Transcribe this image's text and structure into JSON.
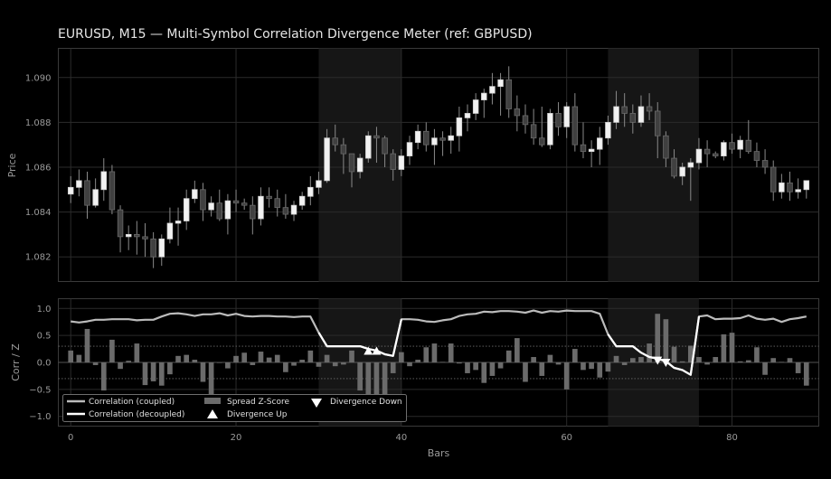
{
  "chart_data": [
    {
      "type": "candlestick",
      "title": "EURUSD, M15  —  Multi-Symbol Correlation Divergence Meter (ref: GBPUSD)",
      "ylabel": "Price",
      "xlim": [
        -1.5,
        90.5
      ],
      "ylim": [
        1.0809,
        1.0913
      ],
      "yticks": [
        1.082,
        1.084,
        1.086,
        1.088,
        1.09
      ],
      "ytick_labels": [
        "1.082",
        "1.084",
        "1.086",
        "1.088",
        "1.090"
      ],
      "grid": true,
      "shaded_x_ranges": [
        [
          30,
          40
        ],
        [
          65,
          76
        ]
      ],
      "candles": [
        [
          0,
          1.0848,
          1.0856,
          1.0844,
          1.0851
        ],
        [
          1,
          1.0851,
          1.0859,
          1.0847,
          1.0854
        ],
        [
          2,
          1.0854,
          1.0858,
          1.0837,
          1.0843
        ],
        [
          3,
          1.0843,
          1.0855,
          1.0842,
          1.085
        ],
        [
          4,
          1.085,
          1.0864,
          1.0845,
          1.0858
        ],
        [
          5,
          1.0858,
          1.0861,
          1.0839,
          1.0841
        ],
        [
          6,
          1.0841,
          1.0843,
          1.0822,
          1.0829
        ],
        [
          7,
          1.0829,
          1.0834,
          1.0823,
          1.083
        ],
        [
          8,
          1.083,
          1.0836,
          1.0821,
          1.0829
        ],
        [
          9,
          1.0829,
          1.0835,
          1.082,
          1.0828
        ],
        [
          10,
          1.0828,
          1.0831,
          1.0815,
          1.082
        ],
        [
          11,
          1.082,
          1.083,
          1.0816,
          1.0828
        ],
        [
          12,
          1.0828,
          1.0842,
          1.0826,
          1.0835
        ],
        [
          13,
          1.0835,
          1.0842,
          1.0825,
          1.0836
        ],
        [
          14,
          1.0836,
          1.085,
          1.0832,
          1.0846
        ],
        [
          15,
          1.0846,
          1.0854,
          1.0844,
          1.085
        ],
        [
          16,
          1.085,
          1.0853,
          1.0836,
          1.0841
        ],
        [
          17,
          1.0841,
          1.0847,
          1.0838,
          1.0844
        ],
        [
          18,
          1.0844,
          1.085,
          1.0836,
          1.0837
        ],
        [
          19,
          1.0837,
          1.0848,
          1.083,
          1.0845
        ],
        [
          20,
          1.0845,
          1.085,
          1.084,
          1.0844
        ],
        [
          21,
          1.0844,
          1.0846,
          1.0841,
          1.0843
        ],
        [
          22,
          1.0843,
          1.0847,
          1.083,
          1.0837
        ],
        [
          23,
          1.0837,
          1.0851,
          1.0834,
          1.0847
        ],
        [
          24,
          1.0847,
          1.0851,
          1.0842,
          1.0846
        ],
        [
          25,
          1.0846,
          1.085,
          1.0838,
          1.0842
        ],
        [
          26,
          1.0842,
          1.0848,
          1.0837,
          1.0839
        ],
        [
          27,
          1.0839,
          1.0845,
          1.0836,
          1.0843
        ],
        [
          28,
          1.0843,
          1.0849,
          1.0841,
          1.0847
        ],
        [
          29,
          1.0847,
          1.0856,
          1.0843,
          1.0851
        ],
        [
          30,
          1.0851,
          1.0858,
          1.0848,
          1.0854
        ],
        [
          31,
          1.0854,
          1.0877,
          1.0853,
          1.0873
        ],
        [
          32,
          1.0873,
          1.0879,
          1.0867,
          1.087
        ],
        [
          33,
          1.087,
          1.0873,
          1.0857,
          1.0866
        ],
        [
          34,
          1.0866,
          1.0866,
          1.0851,
          1.0858
        ],
        [
          35,
          1.0858,
          1.0866,
          1.0855,
          1.0864
        ],
        [
          36,
          1.0864,
          1.0876,
          1.0862,
          1.0874
        ],
        [
          37,
          1.0874,
          1.0878,
          1.0862,
          1.0873
        ],
        [
          38,
          1.0873,
          1.0874,
          1.086,
          1.0866
        ],
        [
          39,
          1.0866,
          1.0868,
          1.0854,
          1.0859
        ],
        [
          40,
          1.0859,
          1.0868,
          1.0856,
          1.0865
        ],
        [
          41,
          1.0865,
          1.0874,
          1.0861,
          1.0871
        ],
        [
          42,
          1.0871,
          1.0879,
          1.0868,
          1.0876
        ],
        [
          43,
          1.0876,
          1.088,
          1.0867,
          1.087
        ],
        [
          44,
          1.087,
          1.0877,
          1.0861,
          1.0873
        ],
        [
          45,
          1.0873,
          1.0876,
          1.0865,
          1.0872
        ],
        [
          46,
          1.0872,
          1.0878,
          1.0866,
          1.0874
        ],
        [
          47,
          1.0874,
          1.0887,
          1.0867,
          1.0882
        ],
        [
          48,
          1.0882,
          1.0888,
          1.0876,
          1.0884
        ],
        [
          49,
          1.0884,
          1.0893,
          1.0881,
          1.089
        ],
        [
          50,
          1.089,
          1.0895,
          1.0882,
          1.0893
        ],
        [
          51,
          1.0893,
          1.0902,
          1.0888,
          1.0896
        ],
        [
          52,
          1.0896,
          1.0902,
          1.0883,
          1.0899
        ],
        [
          53,
          1.0899,
          1.0905,
          1.0882,
          1.0886
        ],
        [
          54,
          1.0886,
          1.0892,
          1.0876,
          1.0883
        ],
        [
          55,
          1.0883,
          1.0888,
          1.0875,
          1.0879
        ],
        [
          56,
          1.0879,
          1.0886,
          1.087,
          1.0873
        ],
        [
          57,
          1.0873,
          1.0887,
          1.0869,
          1.087
        ],
        [
          58,
          1.087,
          1.0886,
          1.0868,
          1.0884
        ],
        [
          59,
          1.0884,
          1.0889,
          1.0874,
          1.0878
        ],
        [
          60,
          1.0878,
          1.0889,
          1.0873,
          1.0887
        ],
        [
          61,
          1.0887,
          1.0893,
          1.0867,
          1.087
        ],
        [
          62,
          1.087,
          1.088,
          1.0864,
          1.0867
        ],
        [
          63,
          1.0867,
          1.0872,
          1.086,
          1.0868
        ],
        [
          64,
          1.0868,
          1.0878,
          1.0861,
          1.0873
        ],
        [
          65,
          1.0873,
          1.0883,
          1.087,
          1.088
        ],
        [
          66,
          1.088,
          1.0894,
          1.0877,
          1.0887
        ],
        [
          67,
          1.0887,
          1.0893,
          1.0878,
          1.0884
        ],
        [
          68,
          1.0884,
          1.0888,
          1.0875,
          1.088
        ],
        [
          69,
          1.088,
          1.0892,
          1.0878,
          1.0887
        ],
        [
          70,
          1.0887,
          1.0893,
          1.0881,
          1.0885
        ],
        [
          71,
          1.0885,
          1.0889,
          1.0864,
          1.0874
        ],
        [
          72,
          1.0874,
          1.0876,
          1.086,
          1.0864
        ],
        [
          73,
          1.0864,
          1.0868,
          1.0855,
          1.0856
        ],
        [
          74,
          1.0856,
          1.0862,
          1.0852,
          1.086
        ],
        [
          75,
          1.086,
          1.0864,
          1.0845,
          1.0862
        ],
        [
          76,
          1.0862,
          1.0873,
          1.0859,
          1.0868
        ],
        [
          77,
          1.0868,
          1.0872,
          1.086,
          1.0866
        ],
        [
          78,
          1.0866,
          1.0867,
          1.0864,
          1.0865
        ],
        [
          79,
          1.0865,
          1.0872,
          1.0863,
          1.0871
        ],
        [
          80,
          1.0871,
          1.0875,
          1.0866,
          1.0868
        ],
        [
          81,
          1.0868,
          1.0874,
          1.0864,
          1.0872
        ],
        [
          82,
          1.0872,
          1.0881,
          1.0866,
          1.0867
        ],
        [
          83,
          1.0867,
          1.0871,
          1.086,
          1.0863
        ],
        [
          84,
          1.0863,
          1.0868,
          1.0857,
          1.086
        ],
        [
          85,
          1.086,
          1.0863,
          1.0845,
          1.0849
        ],
        [
          86,
          1.0849,
          1.0857,
          1.0846,
          1.0853
        ],
        [
          87,
          1.0853,
          1.0858,
          1.0845,
          1.0849
        ],
        [
          88,
          1.0849,
          1.0855,
          1.0846,
          1.085
        ],
        [
          89,
          1.085,
          1.0854,
          1.0846,
          1.0854
        ]
      ]
    },
    {
      "type": "line",
      "xlabel": "Bars",
      "ylabel": "Corr / Z",
      "xlim": [
        -1.5,
        90.5
      ],
      "ylim": [
        -1.18,
        1.18
      ],
      "xticks": [
        0,
        20,
        40,
        60,
        80
      ],
      "xtick_labels": [
        "0",
        "20",
        "40",
        "60",
        "80"
      ],
      "yticks": [
        -1.0,
        -0.5,
        0.0,
        0.5,
        1.0
      ],
      "ytick_labels": [
        "−1.0",
        "−0.5",
        "0.0",
        "0.5",
        "1.0"
      ],
      "grid": true,
      "reference_lines": [
        0.3,
        -0.3
      ],
      "shaded_x_ranges": [
        [
          30,
          40
        ],
        [
          65,
          76
        ]
      ],
      "legend_position": "lower-left",
      "series": [
        {
          "name": "Correlation (coupled)",
          "type": "line",
          "color": "#bbbbbb",
          "x": [
            0,
            1,
            2,
            3,
            4,
            5,
            6,
            7,
            8,
            9,
            10,
            11,
            12,
            13,
            14,
            15,
            16,
            17,
            18,
            19,
            20,
            21,
            22,
            23,
            24,
            25,
            26,
            27,
            28,
            29,
            30,
            31,
            32,
            33,
            34,
            35,
            36,
            37,
            38,
            39,
            40,
            41,
            42,
            43,
            44,
            45,
            46,
            47,
            48,
            49,
            50,
            51,
            52,
            53,
            54,
            55,
            56,
            57,
            58,
            59,
            60,
            61,
            62,
            63,
            64,
            65,
            66,
            67,
            68,
            69,
            70,
            71,
            72,
            73,
            74,
            75,
            76,
            77,
            78,
            79,
            80,
            81,
            82,
            83,
            84,
            85,
            86,
            87,
            88,
            89
          ],
          "y": [
            0.76,
            0.74,
            0.76,
            0.79,
            0.79,
            0.8,
            0.8,
            0.8,
            0.78,
            0.79,
            0.79,
            0.85,
            0.9,
            0.91,
            0.89,
            0.86,
            0.89,
            0.89,
            0.91,
            0.87,
            0.9,
            0.86,
            0.85,
            0.86,
            0.86,
            0.85,
            0.85,
            0.84,
            0.85,
            0.85,
            0.55,
            0.3,
            0.3,
            0.3,
            0.3,
            0.3,
            0.25,
            0.22,
            0.15,
            0.12,
            0.8,
            0.8,
            0.79,
            0.76,
            0.75,
            0.78,
            0.8,
            0.86,
            0.89,
            0.9,
            0.94,
            0.93,
            0.95,
            0.95,
            0.94,
            0.92,
            0.96,
            0.92,
            0.95,
            0.94,
            0.96,
            0.95,
            0.95,
            0.95,
            0.9,
            0.52,
            0.3,
            0.3,
            0.3,
            0.18,
            0.1,
            0.07,
            0.02,
            -0.1,
            -0.14,
            -0.23,
            0.85,
            0.87,
            0.8,
            0.81,
            0.81,
            0.82,
            0.87,
            0.81,
            0.79,
            0.81,
            0.75,
            0.8,
            0.82,
            0.85
          ]
        },
        {
          "name": "Correlation (decoupled)",
          "type": "line",
          "color": "#ffffff",
          "segments": [
            {
              "x": [
                30,
                31,
                32,
                33,
                34,
                35,
                36,
                37,
                38,
                39,
                40
              ],
              "y": [
                0.55,
                0.3,
                0.3,
                0.3,
                0.3,
                0.3,
                0.25,
                0.22,
                0.15,
                0.12,
                0.8
              ]
            },
            {
              "x": [
                65,
                66,
                67,
                68,
                69,
                70,
                71,
                72,
                73,
                74,
                75,
                76
              ],
              "y": [
                0.52,
                0.3,
                0.3,
                0.3,
                0.18,
                0.1,
                0.07,
                0.02,
                -0.1,
                -0.14,
                -0.23,
                0.85
              ]
            }
          ]
        },
        {
          "name": "Spread Z-Score",
          "type": "bar",
          "color": "#6b6b6b",
          "x": [
            0,
            1,
            2,
            3,
            4,
            5,
            6,
            7,
            8,
            9,
            10,
            11,
            12,
            13,
            14,
            15,
            16,
            17,
            18,
            19,
            20,
            21,
            22,
            23,
            24,
            25,
            26,
            27,
            28,
            29,
            30,
            31,
            32,
            33,
            34,
            35,
            36,
            37,
            38,
            39,
            40,
            41,
            42,
            43,
            44,
            45,
            46,
            47,
            48,
            49,
            50,
            51,
            52,
            53,
            54,
            55,
            56,
            57,
            58,
            59,
            60,
            61,
            62,
            63,
            64,
            65,
            66,
            67,
            68,
            69,
            70,
            71,
            72,
            73,
            74,
            75,
            76,
            77,
            78,
            79,
            80,
            81,
            82,
            83,
            84,
            85,
            86,
            87,
            88,
            89
          ],
          "y": [
            0.22,
            0.14,
            0.62,
            -0.05,
            -0.52,
            0.42,
            -0.12,
            0.03,
            0.35,
            -0.42,
            -0.35,
            -0.43,
            -0.22,
            0.12,
            0.14,
            0.05,
            -0.36,
            -0.62,
            -0.01,
            -0.11,
            0.12,
            0.18,
            -0.05,
            0.2,
            0.09,
            0.14,
            -0.18,
            -0.06,
            0.05,
            0.22,
            -0.08,
            0.14,
            -0.07,
            -0.04,
            0.22,
            -0.52,
            -0.72,
            -0.78,
            -0.62,
            -0.2,
            0.19,
            -0.07,
            0.05,
            0.28,
            0.35,
            0.01,
            0.35,
            -0.02,
            -0.2,
            -0.14,
            -0.38,
            -0.25,
            -0.11,
            0.22,
            0.45,
            -0.36,
            0.1,
            -0.25,
            0.14,
            -0.04,
            -0.5,
            0.25,
            -0.14,
            -0.12,
            -0.28,
            -0.17,
            0.12,
            -0.05,
            0.08,
            0.1,
            0.35,
            0.9,
            0.8,
            0.29,
            0.02,
            0.31,
            0.1,
            -0.04,
            0.1,
            0.52,
            0.55,
            0.02,
            0.04,
            0.28,
            -0.23,
            0.08,
            0.01,
            0.08,
            -0.2,
            -0.43
          ]
        },
        {
          "name": "Divergence Up",
          "type": "scatter",
          "marker": "triangle-up",
          "color": "#ffffff",
          "x": [
            36,
            37
          ],
          "y": [
            0.21,
            0.21
          ]
        },
        {
          "name": "Divergence Down",
          "type": "scatter",
          "marker": "triangle-down",
          "color": "#ffffff",
          "x": [
            71,
            72
          ],
          "y": [
            0.04,
            0.0
          ]
        }
      ]
    }
  ]
}
